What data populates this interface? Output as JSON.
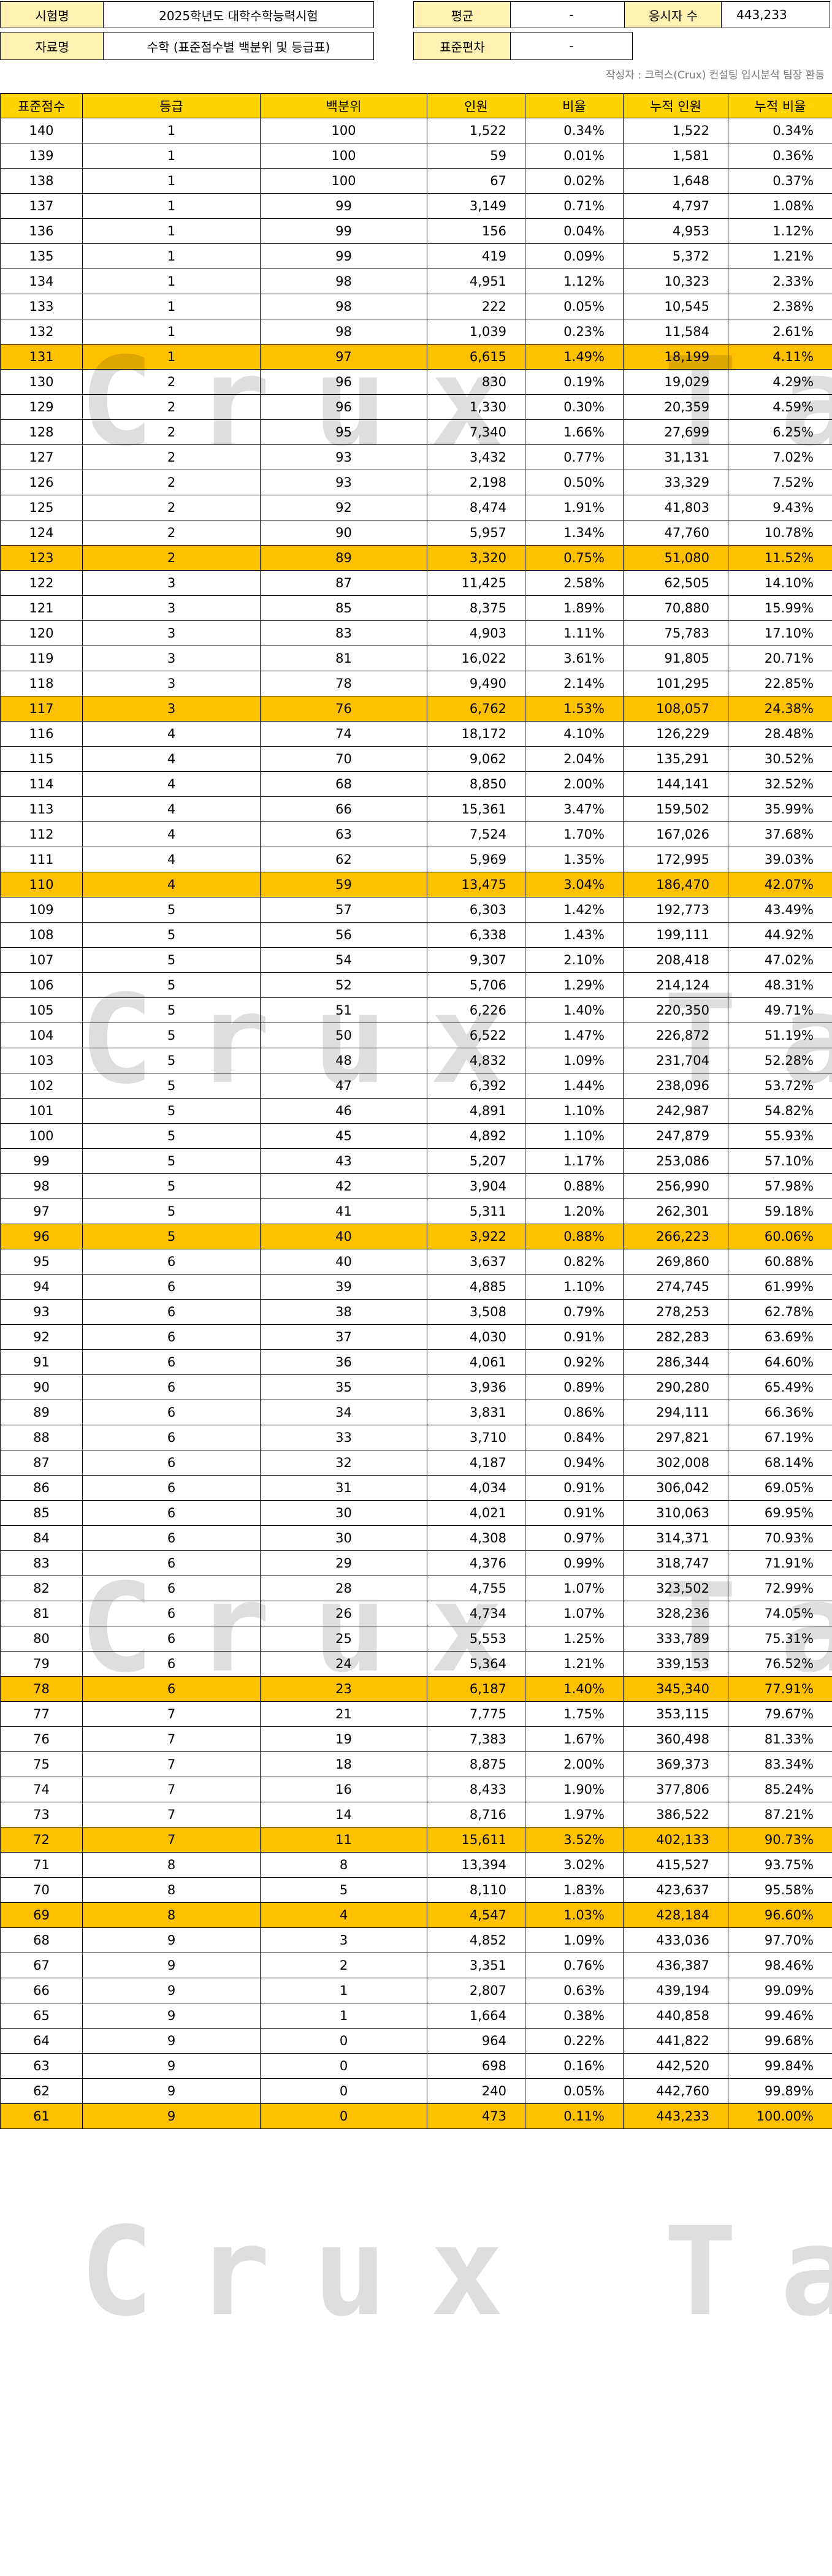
{
  "header": {
    "exam_label": "시험명",
    "exam_value": "2025학년도 대학수학능력시험",
    "mean_label": "평균",
    "mean_value": "-",
    "examinees_label": "응시자 수",
    "examinees_value": "443,233",
    "data_label": "자료명",
    "data_value": "수학 (표준점수별 백분위 및 등급표)",
    "sd_label": "표준편차",
    "sd_value": "-"
  },
  "credit": "작성자 : 크럭스(Crux) 컨설팅 입시분석 팀장 환동",
  "watermark": "Crux Tape",
  "table": {
    "columns": [
      "표준점수",
      "등급",
      "백분위",
      "인원",
      "비율",
      "누적 인원",
      "누적 비율"
    ],
    "rows": [
      [
        "140",
        "1",
        "100",
        "1,522",
        "0.34%",
        "1,522",
        "0.34%"
      ],
      [
        "139",
        "1",
        "100",
        "59",
        "0.01%",
        "1,581",
        "0.36%"
      ],
      [
        "138",
        "1",
        "100",
        "67",
        "0.02%",
        "1,648",
        "0.37%"
      ],
      [
        "137",
        "1",
        "99",
        "3,149",
        "0.71%",
        "4,797",
        "1.08%"
      ],
      [
        "136",
        "1",
        "99",
        "156",
        "0.04%",
        "4,953",
        "1.12%"
      ],
      [
        "135",
        "1",
        "99",
        "419",
        "0.09%",
        "5,372",
        "1.21%"
      ],
      [
        "134",
        "1",
        "98",
        "4,951",
        "1.12%",
        "10,323",
        "2.33%"
      ],
      [
        "133",
        "1",
        "98",
        "222",
        "0.05%",
        "10,545",
        "2.38%"
      ],
      [
        "132",
        "1",
        "98",
        "1,039",
        "0.23%",
        "11,584",
        "2.61%"
      ],
      [
        "131",
        "1",
        "97",
        "6,615",
        "1.49%",
        "18,199",
        "4.11%"
      ],
      [
        "130",
        "2",
        "96",
        "830",
        "0.19%",
        "19,029",
        "4.29%"
      ],
      [
        "129",
        "2",
        "96",
        "1,330",
        "0.30%",
        "20,359",
        "4.59%"
      ],
      [
        "128",
        "2",
        "95",
        "7,340",
        "1.66%",
        "27,699",
        "6.25%"
      ],
      [
        "127",
        "2",
        "93",
        "3,432",
        "0.77%",
        "31,131",
        "7.02%"
      ],
      [
        "126",
        "2",
        "93",
        "2,198",
        "0.50%",
        "33,329",
        "7.52%"
      ],
      [
        "125",
        "2",
        "92",
        "8,474",
        "1.91%",
        "41,803",
        "9.43%"
      ],
      [
        "124",
        "2",
        "90",
        "5,957",
        "1.34%",
        "47,760",
        "10.78%"
      ],
      [
        "123",
        "2",
        "89",
        "3,320",
        "0.75%",
        "51,080",
        "11.52%"
      ],
      [
        "122",
        "3",
        "87",
        "11,425",
        "2.58%",
        "62,505",
        "14.10%"
      ],
      [
        "121",
        "3",
        "85",
        "8,375",
        "1.89%",
        "70,880",
        "15.99%"
      ],
      [
        "120",
        "3",
        "83",
        "4,903",
        "1.11%",
        "75,783",
        "17.10%"
      ],
      [
        "119",
        "3",
        "81",
        "16,022",
        "3.61%",
        "91,805",
        "20.71%"
      ],
      [
        "118",
        "3",
        "78",
        "9,490",
        "2.14%",
        "101,295",
        "22.85%"
      ],
      [
        "117",
        "3",
        "76",
        "6,762",
        "1.53%",
        "108,057",
        "24.38%"
      ],
      [
        "116",
        "4",
        "74",
        "18,172",
        "4.10%",
        "126,229",
        "28.48%"
      ],
      [
        "115",
        "4",
        "70",
        "9,062",
        "2.04%",
        "135,291",
        "30.52%"
      ],
      [
        "114",
        "4",
        "68",
        "8,850",
        "2.00%",
        "144,141",
        "32.52%"
      ],
      [
        "113",
        "4",
        "66",
        "15,361",
        "3.47%",
        "159,502",
        "35.99%"
      ],
      [
        "112",
        "4",
        "63",
        "7,524",
        "1.70%",
        "167,026",
        "37.68%"
      ],
      [
        "111",
        "4",
        "62",
        "5,969",
        "1.35%",
        "172,995",
        "39.03%"
      ],
      [
        "110",
        "4",
        "59",
        "13,475",
        "3.04%",
        "186,470",
        "42.07%"
      ],
      [
        "109",
        "5",
        "57",
        "6,303",
        "1.42%",
        "192,773",
        "43.49%"
      ],
      [
        "108",
        "5",
        "56",
        "6,338",
        "1.43%",
        "199,111",
        "44.92%"
      ],
      [
        "107",
        "5",
        "54",
        "9,307",
        "2.10%",
        "208,418",
        "47.02%"
      ],
      [
        "106",
        "5",
        "52",
        "5,706",
        "1.29%",
        "214,124",
        "48.31%"
      ],
      [
        "105",
        "5",
        "51",
        "6,226",
        "1.40%",
        "220,350",
        "49.71%"
      ],
      [
        "104",
        "5",
        "50",
        "6,522",
        "1.47%",
        "226,872",
        "51.19%"
      ],
      [
        "103",
        "5",
        "48",
        "4,832",
        "1.09%",
        "231,704",
        "52.28%"
      ],
      [
        "102",
        "5",
        "47",
        "6,392",
        "1.44%",
        "238,096",
        "53.72%"
      ],
      [
        "101",
        "5",
        "46",
        "4,891",
        "1.10%",
        "242,987",
        "54.82%"
      ],
      [
        "100",
        "5",
        "45",
        "4,892",
        "1.10%",
        "247,879",
        "55.93%"
      ],
      [
        "99",
        "5",
        "43",
        "5,207",
        "1.17%",
        "253,086",
        "57.10%"
      ],
      [
        "98",
        "5",
        "42",
        "3,904",
        "0.88%",
        "256,990",
        "57.98%"
      ],
      [
        "97",
        "5",
        "41",
        "5,311",
        "1.20%",
        "262,301",
        "59.18%"
      ],
      [
        "96",
        "5",
        "40",
        "3,922",
        "0.88%",
        "266,223",
        "60.06%"
      ],
      [
        "95",
        "6",
        "40",
        "3,637",
        "0.82%",
        "269,860",
        "60.88%"
      ],
      [
        "94",
        "6",
        "39",
        "4,885",
        "1.10%",
        "274,745",
        "61.99%"
      ],
      [
        "93",
        "6",
        "38",
        "3,508",
        "0.79%",
        "278,253",
        "62.78%"
      ],
      [
        "92",
        "6",
        "37",
        "4,030",
        "0.91%",
        "282,283",
        "63.69%"
      ],
      [
        "91",
        "6",
        "36",
        "4,061",
        "0.92%",
        "286,344",
        "64.60%"
      ],
      [
        "90",
        "6",
        "35",
        "3,936",
        "0.89%",
        "290,280",
        "65.49%"
      ],
      [
        "89",
        "6",
        "34",
        "3,831",
        "0.86%",
        "294,111",
        "66.36%"
      ],
      [
        "88",
        "6",
        "33",
        "3,710",
        "0.84%",
        "297,821",
        "67.19%"
      ],
      [
        "87",
        "6",
        "32",
        "4,187",
        "0.94%",
        "302,008",
        "68.14%"
      ],
      [
        "86",
        "6",
        "31",
        "4,034",
        "0.91%",
        "306,042",
        "69.05%"
      ],
      [
        "85",
        "6",
        "30",
        "4,021",
        "0.91%",
        "310,063",
        "69.95%"
      ],
      [
        "84",
        "6",
        "30",
        "4,308",
        "0.97%",
        "314,371",
        "70.93%"
      ],
      [
        "83",
        "6",
        "29",
        "4,376",
        "0.99%",
        "318,747",
        "71.91%"
      ],
      [
        "82",
        "6",
        "28",
        "4,755",
        "1.07%",
        "323,502",
        "72.99%"
      ],
      [
        "81",
        "6",
        "26",
        "4,734",
        "1.07%",
        "328,236",
        "74.05%"
      ],
      [
        "80",
        "6",
        "25",
        "5,553",
        "1.25%",
        "333,789",
        "75.31%"
      ],
      [
        "79",
        "6",
        "24",
        "5,364",
        "1.21%",
        "339,153",
        "76.52%"
      ],
      [
        "78",
        "6",
        "23",
        "6,187",
        "1.40%",
        "345,340",
        "77.91%"
      ],
      [
        "77",
        "7",
        "21",
        "7,775",
        "1.75%",
        "353,115",
        "79.67%"
      ],
      [
        "76",
        "7",
        "19",
        "7,383",
        "1.67%",
        "360,498",
        "81.33%"
      ],
      [
        "75",
        "7",
        "18",
        "8,875",
        "2.00%",
        "369,373",
        "83.34%"
      ],
      [
        "74",
        "7",
        "16",
        "8,433",
        "1.90%",
        "377,806",
        "85.24%"
      ],
      [
        "73",
        "7",
        "14",
        "8,716",
        "1.97%",
        "386,522",
        "87.21%"
      ],
      [
        "72",
        "7",
        "11",
        "15,611",
        "3.52%",
        "402,133",
        "90.73%"
      ],
      [
        "71",
        "8",
        "8",
        "13,394",
        "3.02%",
        "415,527",
        "93.75%"
      ],
      [
        "70",
        "8",
        "5",
        "8,110",
        "1.83%",
        "423,637",
        "95.58%"
      ],
      [
        "69",
        "8",
        "4",
        "4,547",
        "1.03%",
        "428,184",
        "96.60%"
      ],
      [
        "68",
        "9",
        "3",
        "4,852",
        "1.09%",
        "433,036",
        "97.70%"
      ],
      [
        "67",
        "9",
        "2",
        "3,351",
        "0.76%",
        "436,387",
        "98.46%"
      ],
      [
        "66",
        "9",
        "1",
        "2,807",
        "0.63%",
        "439,194",
        "99.09%"
      ],
      [
        "65",
        "9",
        "1",
        "1,664",
        "0.38%",
        "440,858",
        "99.46%"
      ],
      [
        "64",
        "9",
        "0",
        "964",
        "0.22%",
        "441,822",
        "99.68%"
      ],
      [
        "63",
        "9",
        "0",
        "698",
        "0.16%",
        "442,520",
        "99.84%"
      ],
      [
        "62",
        "9",
        "0",
        "240",
        "0.05%",
        "442,760",
        "99.89%"
      ],
      [
        "61",
        "9",
        "0",
        "473",
        "0.11%",
        "443,233",
        "100.00%"
      ]
    ],
    "highlighted_scores": [
      "131",
      "123",
      "117",
      "110",
      "96",
      "78",
      "72",
      "69",
      "61"
    ]
  },
  "colors": {
    "header_fill": "#ffd400",
    "highlight_fill": "#ffc000",
    "label_fill": "#fff2b3"
  }
}
